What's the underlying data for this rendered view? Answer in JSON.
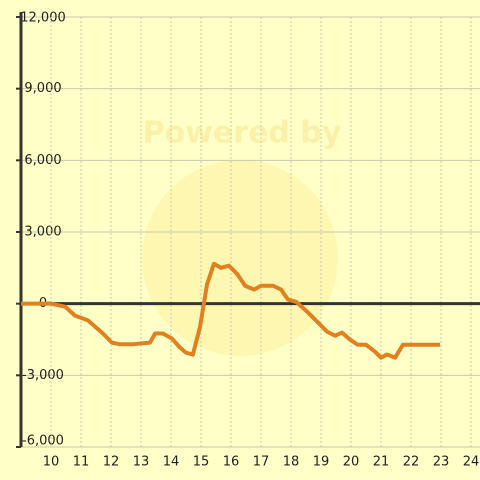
{
  "chart_data": {
    "type": "line",
    "watermark": "Powered by",
    "x": [
      9,
      10,
      10.47,
      10.8,
      11.23,
      11.73,
      12.03,
      12.3,
      12.73,
      12.97,
      13.3,
      13.47,
      13.73,
      14.03,
      14.3,
      14.5,
      14.73,
      14.97,
      15.2,
      15.43,
      15.67,
      15.93,
      16.2,
      16.47,
      16.77,
      17,
      17.4,
      17.67,
      17.9,
      18.17,
      18.5,
      18.87,
      19.2,
      19.47,
      19.7,
      19.97,
      20.23,
      20.5,
      20.8,
      21,
      21.2,
      21.47,
      21.73,
      22.03,
      22.97
    ],
    "series": [
      {
        "color": "#e0801e",
        "values": [
          0,
          0,
          -125,
          -500,
          -700,
          -1250,
          -1630,
          -1700,
          -1700,
          -1670,
          -1630,
          -1250,
          -1250,
          -1460,
          -1840,
          -2050,
          -2130,
          -960,
          800,
          1670,
          1500,
          1590,
          1250,
          750,
          590,
          750,
          750,
          590,
          170,
          80,
          -290,
          -750,
          -1170,
          -1340,
          -1210,
          -1510,
          -1720,
          -1720,
          -2010,
          -2260,
          -2130,
          -2260,
          -1720,
          -1720,
          -1720
        ]
      }
    ],
    "xlim": [
      9,
      24.3
    ],
    "xticks": [
      10,
      11,
      12,
      13,
      14,
      15,
      16,
      17,
      18,
      19,
      20,
      21,
      22,
      23,
      24
    ],
    "ylim": [
      -6000,
      12000
    ],
    "yticks": [
      {
        "value": -6000,
        "label": "-6,000"
      },
      {
        "value": -3000,
        "label": "-3,000"
      },
      0,
      {
        "value": 3000,
        "label": "3,000"
      },
      {
        "value": 6000,
        "label": "6,000"
      },
      {
        "value": 9000,
        "label": "9,000"
      },
      {
        "value": 12000,
        "label": "12,000"
      }
    ],
    "grid": true
  }
}
